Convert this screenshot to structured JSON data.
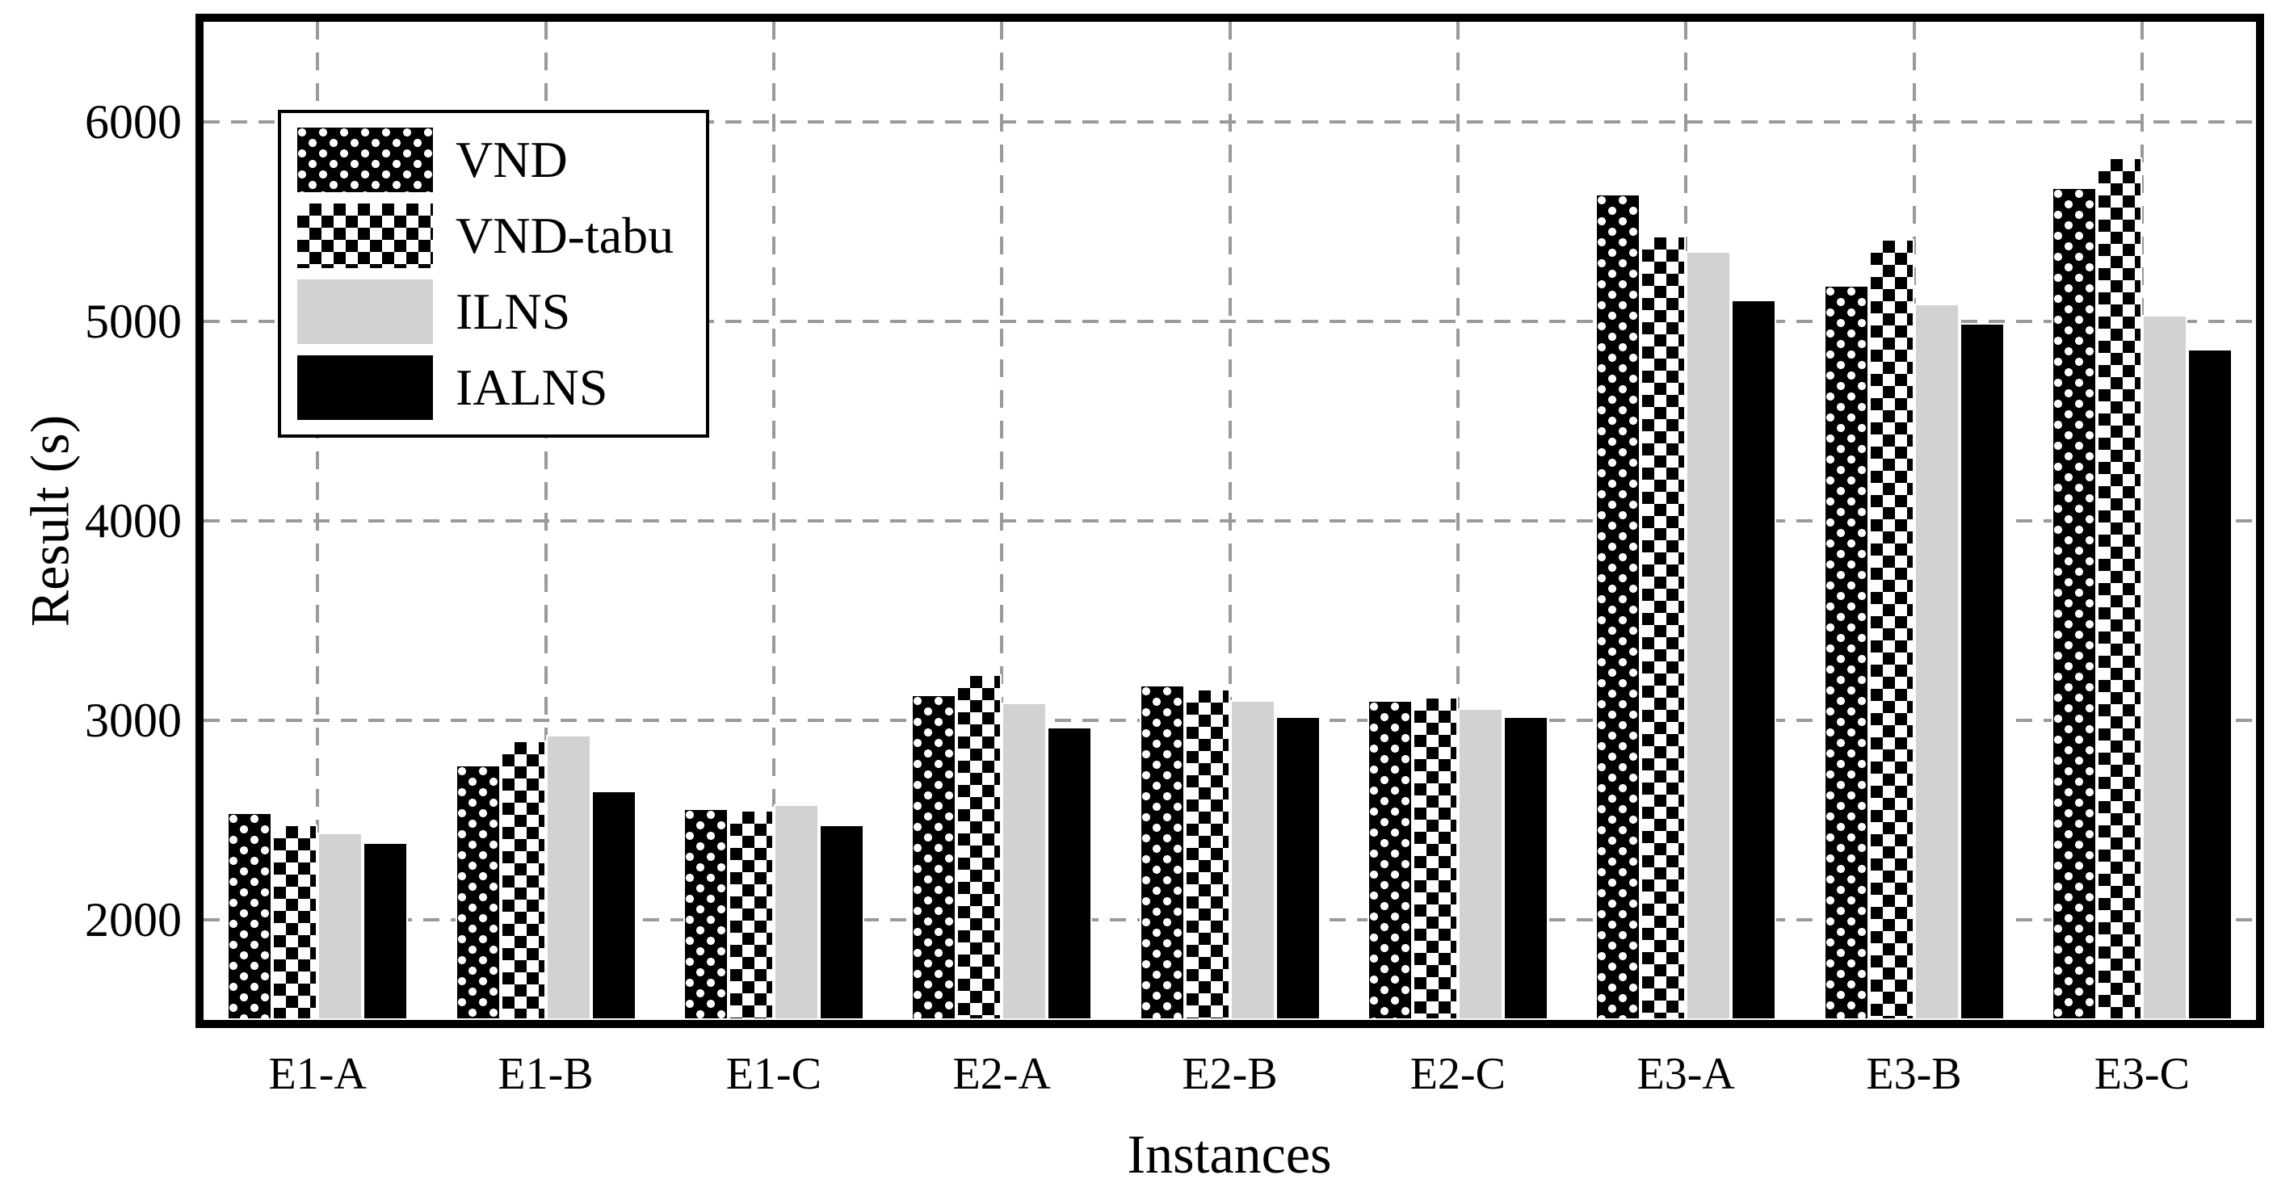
{
  "figure": {
    "background": "#ffffff",
    "frame_color": "#000000",
    "grid_color": "#9a9a9a",
    "bar_edge_color": "#ffffff"
  },
  "chart_data": {
    "type": "bar",
    "title": "",
    "xlabel": "Instances",
    "ylabel": "Result (s)",
    "categories": [
      "E1-A",
      "E1-B",
      "E1-C",
      "E2-A",
      "E2-B",
      "E2-C",
      "E3-A",
      "E3-B",
      "E3-C"
    ],
    "series": [
      {
        "name": "VND",
        "pattern": "black-with-white-dots",
        "color": "#000000",
        "values": [
          2540,
          2780,
          2560,
          3130,
          3180,
          3100,
          5640,
          5180,
          5670
        ]
      },
      {
        "name": "VND-tabu",
        "pattern": "black-white-checkerboard",
        "color": "#000000",
        "values": [
          2480,
          2900,
          2550,
          3230,
          3160,
          3120,
          5430,
          5410,
          5820
        ]
      },
      {
        "name": "ILNS",
        "pattern": "solid-lightgray",
        "color": "#d2d2d2",
        "values": [
          2440,
          2930,
          2580,
          3090,
          3100,
          3060,
          5350,
          5090,
          5030
        ]
      },
      {
        "name": "IALNS",
        "pattern": "solid-black",
        "color": "#000000",
        "values": [
          2390,
          2650,
          2480,
          2970,
          3020,
          3020,
          5110,
          4990,
          4860
        ]
      }
    ],
    "y_ticks": [
      2000,
      3000,
      4000,
      5000,
      6000
    ],
    "ylim": [
      1500,
      6500
    ],
    "grid": "dashed-major-both-axes",
    "legend_position": "upper-left"
  }
}
